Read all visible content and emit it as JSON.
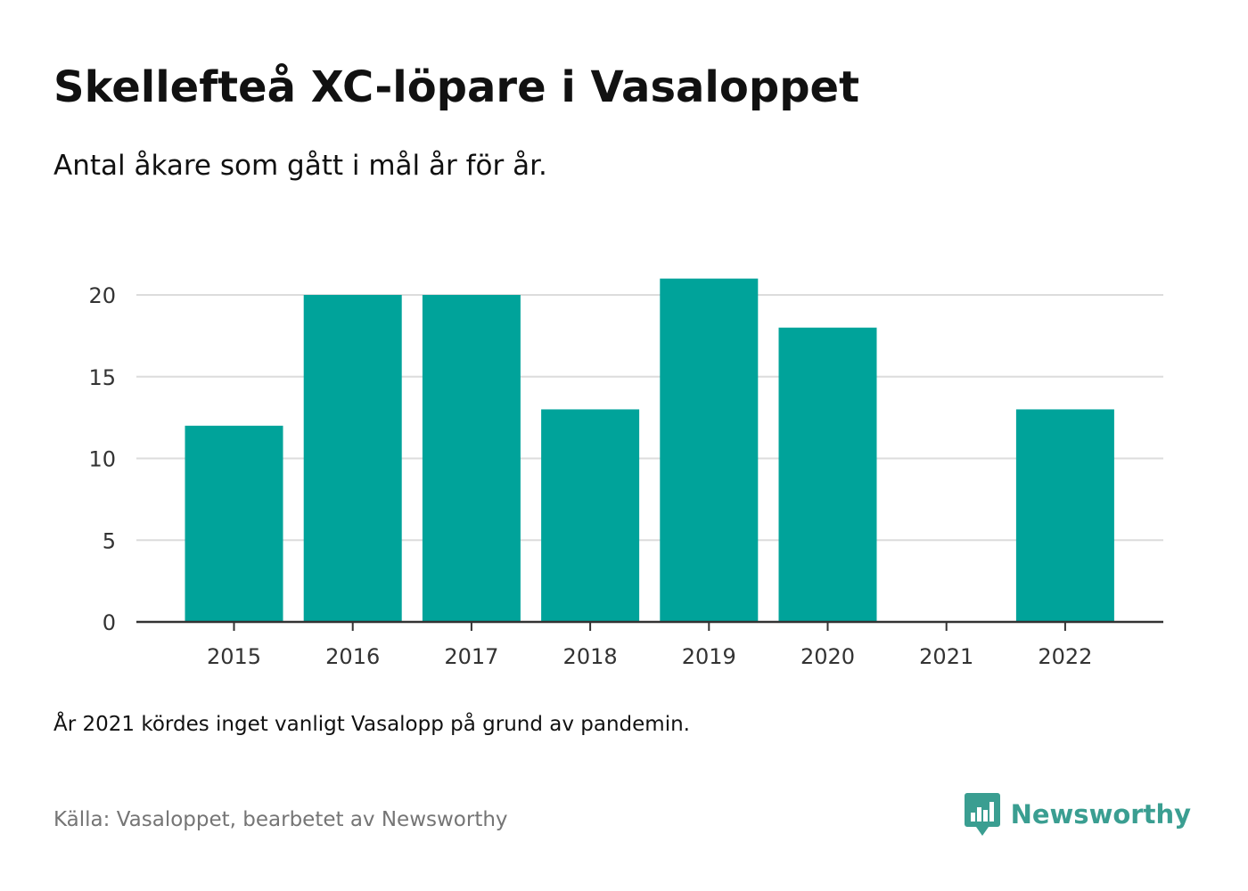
{
  "header": {
    "title": "Skellefteå XC-löpare i Vasaloppet",
    "subtitle": "Antal åkare som gått i mål år för år."
  },
  "footer": {
    "note": "År 2021 kördes inget vanligt Vasalopp på grund av pandemin.",
    "source": "Källa: Vasaloppet, bearbetet av Newsworthy",
    "brand": "Newsworthy",
    "brand_icon": "bar-chart-speech-bubble-icon"
  },
  "colors": {
    "bar": "#00a39a",
    "grid": "#dcdcdc",
    "axis": "#333333",
    "brand": "#3a9e91"
  },
  "chart_data": {
    "type": "bar",
    "categories": [
      "2015",
      "2016",
      "2017",
      "2018",
      "2019",
      "2020",
      "2021",
      "2022"
    ],
    "values": [
      12,
      20,
      20,
      13,
      21,
      18,
      0,
      13
    ],
    "ylim": [
      0,
      22
    ],
    "yticks": [
      0,
      5,
      10,
      15,
      20
    ],
    "grid": true,
    "xlabel": "",
    "ylabel": ""
  }
}
